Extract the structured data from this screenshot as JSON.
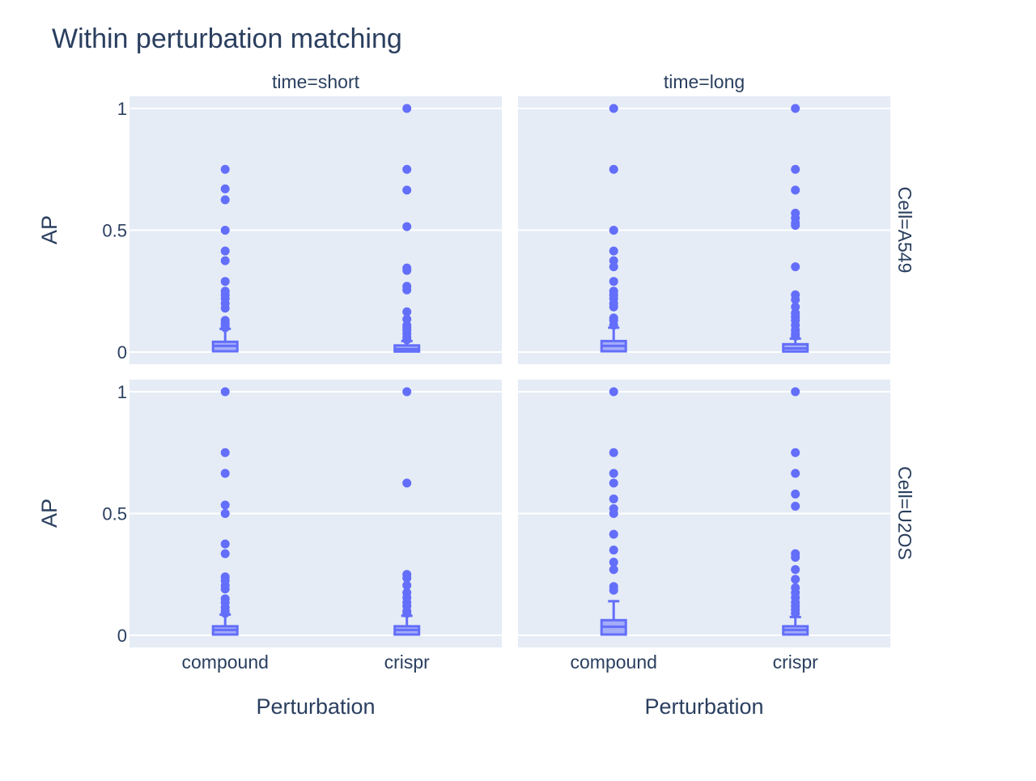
{
  "chart_data": {
    "type": "box",
    "title": "Within perturbation matching",
    "xlabel": "Perturbation",
    "ylabel": "AP",
    "categories": [
      "compound",
      "crispr"
    ],
    "col_facets": [
      "time=short",
      "time=long"
    ],
    "row_facets": [
      "Cell=A549",
      "Cell=U2OS"
    ],
    "ylim": [
      -0.05,
      1.05
    ],
    "yticks": [
      {
        "v": 0,
        "label": "0"
      },
      {
        "v": 0.5,
        "label": "0.5"
      },
      {
        "v": 1,
        "label": "1"
      }
    ],
    "colors": {
      "marker": "#636efa",
      "plot_bg": "#e5ecf6",
      "grid": "#ffffff",
      "text": "#2a3f5f"
    },
    "panels": [
      {
        "cell": "Cell=A549",
        "time": "time=short",
        "boxes": [
          {
            "category": "compound",
            "q1": 0.003,
            "median": 0.025,
            "q3": 0.042,
            "whisker_low": 0,
            "whisker_high": 0.095,
            "outliers": [
              0.75,
              0.67,
              0.625,
              0.5,
              0.415,
              0.375,
              0.29,
              0.25,
              0.235,
              0.22,
              0.2,
              0.18,
              0.13,
              0.12,
              0.11,
              0.1
            ]
          },
          {
            "category": "crispr",
            "q1": 0.002,
            "median": 0.012,
            "q3": 0.027,
            "whisker_low": 0,
            "whisker_high": 0.045,
            "outliers": [
              1.0,
              0.75,
              0.665,
              0.515,
              0.345,
              0.335,
              0.27,
              0.255,
              0.165,
              0.135,
              0.11,
              0.1,
              0.09,
              0.075,
              0.06,
              0.05
            ]
          }
        ]
      },
      {
        "cell": "Cell=A549",
        "time": "time=long",
        "boxes": [
          {
            "category": "compound",
            "q1": 0.003,
            "median": 0.025,
            "q3": 0.045,
            "whisker_low": 0,
            "whisker_high": 0.1,
            "outliers": [
              1.0,
              0.75,
              0.5,
              0.415,
              0.375,
              0.35,
              0.29,
              0.25,
              0.235,
              0.22,
              0.2,
              0.185,
              0.14,
              0.13,
              0.11
            ]
          },
          {
            "category": "crispr",
            "q1": 0.002,
            "median": 0.015,
            "q3": 0.032,
            "whisker_low": 0,
            "whisker_high": 0.055,
            "outliers": [
              1.0,
              0.75,
              0.665,
              0.57,
              0.55,
              0.53,
              0.52,
              0.35,
              0.235,
              0.215,
              0.185,
              0.16,
              0.145,
              0.13,
              0.11,
              0.09,
              0.075,
              0.065
            ]
          }
        ]
      },
      {
        "cell": "Cell=U2OS",
        "time": "time=short",
        "boxes": [
          {
            "category": "compound",
            "q1": 0.003,
            "median": 0.022,
            "q3": 0.037,
            "whisker_low": 0,
            "whisker_high": 0.085,
            "outliers": [
              1.0,
              0.75,
              0.665,
              0.535,
              0.5,
              0.375,
              0.335,
              0.24,
              0.225,
              0.205,
              0.19,
              0.15,
              0.135,
              0.115,
              0.1,
              0.09
            ]
          },
          {
            "category": "crispr",
            "q1": 0.003,
            "median": 0.022,
            "q3": 0.037,
            "whisker_low": 0,
            "whisker_high": 0.08,
            "outliers": [
              1.0,
              0.625,
              0.25,
              0.235,
              0.205,
              0.175,
              0.155,
              0.135,
              0.12,
              0.1,
              0.09
            ]
          }
        ]
      },
      {
        "cell": "Cell=U2OS",
        "time": "time=long",
        "boxes": [
          {
            "category": "compound",
            "q1": 0.003,
            "median": 0.035,
            "q3": 0.062,
            "whisker_low": 0,
            "whisker_high": 0.14,
            "outliers": [
              1.0,
              0.75,
              0.665,
              0.625,
              0.56,
              0.52,
              0.5,
              0.415,
              0.35,
              0.3,
              0.27,
              0.2,
              0.185
            ]
          },
          {
            "category": "crispr",
            "q1": 0.003,
            "median": 0.022,
            "q3": 0.037,
            "whisker_low": 0,
            "whisker_high": 0.075,
            "outliers": [
              1.0,
              0.75,
              0.665,
              0.58,
              0.53,
              0.335,
              0.32,
              0.27,
              0.23,
              0.195,
              0.175,
              0.155,
              0.135,
              0.12,
              0.105,
              0.09
            ]
          }
        ]
      }
    ]
  }
}
